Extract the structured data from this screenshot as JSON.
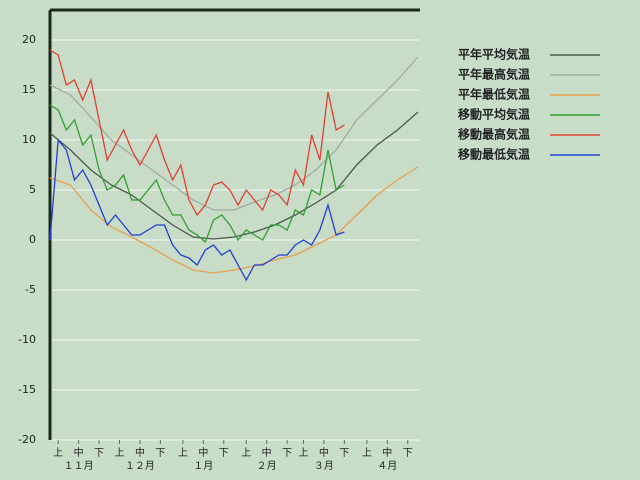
{
  "chart_data": {
    "type": "line",
    "xlim": [
      0,
      181
    ],
    "ylim": [
      -20,
      23
    ],
    "yticks": [
      -20,
      -15,
      -10,
      -5,
      0,
      5,
      10,
      15,
      20
    ],
    "xticks": [
      {
        "value": 4,
        "label": "上"
      },
      {
        "value": 14,
        "label": "中"
      },
      {
        "value": 24,
        "label": "下"
      },
      {
        "value": 34,
        "label": "上"
      },
      {
        "value": 44,
        "label": "中"
      },
      {
        "value": 54,
        "label": "下"
      },
      {
        "value": 65,
        "label": "上"
      },
      {
        "value": 75,
        "label": "中"
      },
      {
        "value": 85,
        "label": "下"
      },
      {
        "value": 96,
        "label": "上"
      },
      {
        "value": 106,
        "label": "中"
      },
      {
        "value": 116,
        "label": "下"
      },
      {
        "value": 124,
        "label": "上"
      },
      {
        "value": 134,
        "label": "中"
      },
      {
        "value": 144,
        "label": "下"
      },
      {
        "value": 155,
        "label": "上"
      },
      {
        "value": 165,
        "label": "中"
      },
      {
        "value": 175,
        "label": "下"
      }
    ],
    "month_labels": [
      {
        "value": 14,
        "label": "１１月"
      },
      {
        "value": 44,
        "label": "１２月"
      },
      {
        "value": 75,
        "label": "１月"
      },
      {
        "value": 106,
        "label": "２月"
      },
      {
        "value": 134,
        "label": "３月"
      },
      {
        "value": 165,
        "label": "４月"
      }
    ],
    "grid": true,
    "legend": "right",
    "series": [
      {
        "name": "平年平均気温",
        "color": "#4a5a4a",
        "x": [
          0,
          10,
          20,
          30,
          40,
          50,
          60,
          70,
          80,
          90,
          100,
          110,
          120,
          130,
          140,
          150,
          160,
          170,
          180
        ],
        "values": [
          10.7,
          9,
          7,
          5.5,
          4.5,
          3,
          1.5,
          0.3,
          0.1,
          0.3,
          0.8,
          1.5,
          2.5,
          3.7,
          5,
          7.5,
          9.5,
          11,
          12.8
        ]
      },
      {
        "name": "平年最高気温",
        "color": "#a0aca0",
        "x": [
          0,
          10,
          20,
          30,
          40,
          50,
          60,
          70,
          80,
          90,
          100,
          110,
          120,
          130,
          140,
          150,
          160,
          170,
          180
        ],
        "values": [
          15.5,
          14.5,
          12.3,
          10,
          8.5,
          7,
          5.5,
          4,
          3,
          3,
          3.8,
          4.5,
          5.5,
          7,
          9,
          12,
          14,
          16,
          18.3
        ]
      },
      {
        "name": "平年最低気温",
        "color": "#e8a050",
        "x": [
          0,
          10,
          20,
          30,
          40,
          50,
          60,
          70,
          80,
          90,
          100,
          110,
          120,
          130,
          140,
          150,
          160,
          170,
          180
        ],
        "values": [
          6.2,
          5.5,
          3,
          1.3,
          0.3,
          -0.8,
          -2,
          -3,
          -3.3,
          -3,
          -2.6,
          -2,
          -1.5,
          -0.5,
          0.5,
          2.5,
          4.5,
          6,
          7.3
        ]
      },
      {
        "name": "移動平均気温",
        "color": "#30a030",
        "x": [
          0,
          4,
          8,
          12,
          16,
          20,
          24,
          28,
          32,
          36,
          40,
          44,
          48,
          52,
          56,
          60,
          64,
          68,
          72,
          76,
          80,
          84,
          88,
          92,
          96,
          100,
          104,
          108,
          112,
          116,
          120,
          124,
          128,
          132,
          136,
          140,
          144
        ],
        "values": [
          13.5,
          13,
          11,
          12,
          9.5,
          10.5,
          7,
          5,
          5.5,
          6.5,
          4,
          4,
          5,
          6,
          4,
          2.5,
          2.5,
          1,
          0.5,
          -0.2,
          2,
          2.5,
          1.5,
          0,
          1,
          0.5,
          0,
          1.5,
          1.5,
          1,
          3,
          2.5,
          5,
          4.5,
          9,
          5,
          5.5
        ]
      },
      {
        "name": "移動最高気温",
        "color": "#e04030",
        "x": [
          0,
          4,
          8,
          12,
          16,
          20,
          24,
          28,
          32,
          36,
          40,
          44,
          48,
          52,
          56,
          60,
          64,
          68,
          72,
          76,
          80,
          84,
          88,
          92,
          96,
          100,
          104,
          108,
          112,
          116,
          120,
          124,
          128,
          132,
          136,
          140,
          144
        ],
        "values": [
          19,
          18.5,
          15.5,
          16,
          14,
          16,
          12,
          8,
          9.5,
          11,
          9,
          7.5,
          9,
          10.5,
          8,
          6,
          7.5,
          4,
          2.5,
          3.5,
          5.5,
          5.8,
          5,
          3.5,
          5,
          4,
          3,
          5,
          4.5,
          3.5,
          7,
          5.5,
          10.5,
          8,
          14.8,
          11,
          11.5
        ]
      },
      {
        "name": "移動最低気温",
        "color": "#2040d0",
        "x": [
          0,
          4,
          8,
          12,
          16,
          20,
          24,
          28,
          32,
          36,
          40,
          44,
          48,
          52,
          56,
          60,
          64,
          68,
          72,
          76,
          80,
          84,
          88,
          92,
          96,
          100,
          104,
          108,
          112,
          116,
          120,
          124,
          128,
          132,
          136,
          140,
          144
        ],
        "values": [
          0,
          10,
          9,
          6,
          7,
          5.5,
          3.5,
          1.5,
          2.5,
          1.5,
          0.5,
          0.5,
          1,
          1.5,
          1.5,
          -0.5,
          -1.5,
          -1.8,
          -2.5,
          -1,
          -0.5,
          -1.5,
          -1,
          -2.5,
          -4,
          -2.5,
          -2.5,
          -2,
          -1.5,
          -1.5,
          -0.5,
          0,
          -0.5,
          1,
          3.5,
          0.5,
          0.8
        ]
      }
    ]
  }
}
